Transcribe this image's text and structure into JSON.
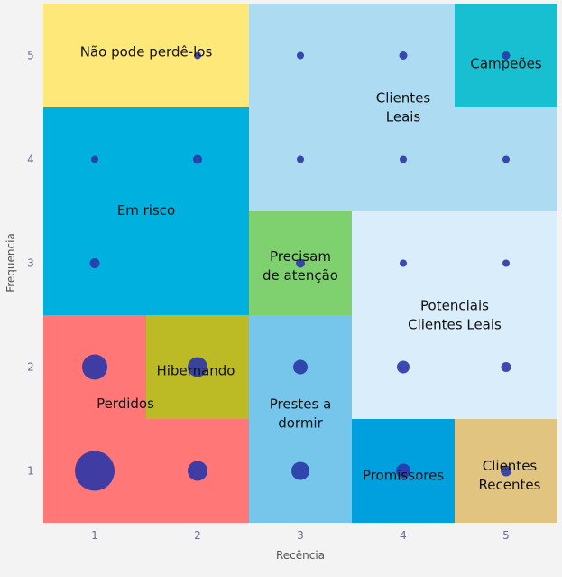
{
  "chart_data": {
    "type": "scatter",
    "subtype": "bubble-over-segment-grid",
    "xlabel": "Recência",
    "ylabel": "Frequencia",
    "xlim": [
      0.5,
      5.5
    ],
    "ylim": [
      0.5,
      5.5
    ],
    "xticks": [
      "1",
      "2",
      "3",
      "4",
      "5"
    ],
    "yticks": [
      "1",
      "2",
      "3",
      "4",
      "5"
    ],
    "grid": false,
    "point_color": "#2a36a8",
    "segments": [
      {
        "name": "Não pode perdê-los",
        "lines": [
          "Não pode perdê-los"
        ],
        "x": [
          0.5,
          2.5
        ],
        "y": [
          4.5,
          5.5
        ],
        "color": "#FFE87A"
      },
      {
        "name": "Clientes Leais",
        "lines": [
          "Clientes",
          "Leais"
        ],
        "x": [
          2.5,
          5.5
        ],
        "y": [
          3.5,
          5.5
        ],
        "color": "#ADDBF2"
      },
      {
        "name": "Campeões",
        "lines": [
          "Campeões"
        ],
        "x": [
          4.5,
          5.5
        ],
        "y": [
          4.5,
          5.5
        ],
        "color": "#18BFD1"
      },
      {
        "name": "Em risco",
        "lines": [
          "Em risco"
        ],
        "x": [
          0.5,
          2.5
        ],
        "y": [
          2.5,
          4.5
        ],
        "color": "#00B1E0"
      },
      {
        "name": "Precisam de atenção",
        "lines": [
          "Precisam",
          "de atenção"
        ],
        "x": [
          2.5,
          3.5
        ],
        "y": [
          2.5,
          3.5
        ],
        "color": "#7FD170"
      },
      {
        "name": "Potenciais Clientes Leais",
        "lines": [
          "Potenciais",
          "Clientes Leais"
        ],
        "x": [
          3.5,
          5.5
        ],
        "y": [
          1.5,
          3.5
        ],
        "color": "#DAEDFA"
      },
      {
        "name": "Perdidos",
        "lines": [
          "Perdidos"
        ],
        "x": [
          0.5,
          2.5
        ],
        "y": [
          0.5,
          2.5
        ],
        "color": "#FF7777"
      },
      {
        "name": "Hibernando",
        "lines": [
          "Hibernando"
        ],
        "x": [
          1.5,
          2.5
        ],
        "y": [
          1.5,
          2.5
        ],
        "color": "#BDBB25"
      },
      {
        "name": "Prestes a dormir",
        "lines": [
          "Prestes a",
          "dormir"
        ],
        "x": [
          2.5,
          3.5
        ],
        "y": [
          0.5,
          2.5
        ],
        "color": "#76C6EB"
      },
      {
        "name": "Promissores",
        "lines": [
          "Promissores"
        ],
        "x": [
          3.5,
          4.5
        ],
        "y": [
          0.5,
          1.5
        ],
        "color": "#009FDE"
      },
      {
        "name": "Clientes Recentes",
        "lines": [
          "Clientes",
          "Recentes"
        ],
        "x": [
          4.5,
          5.5
        ],
        "y": [
          0.5,
          1.5
        ],
        "color": "#E1C47F"
      }
    ],
    "points": [
      {
        "x": 1,
        "y": 1,
        "size": 22
      },
      {
        "x": 2,
        "y": 1,
        "size": 11
      },
      {
        "x": 3,
        "y": 1,
        "size": 10
      },
      {
        "x": 4,
        "y": 1,
        "size": 8
      },
      {
        "x": 5,
        "y": 1,
        "size": 6
      },
      {
        "x": 1,
        "y": 2,
        "size": 14
      },
      {
        "x": 2,
        "y": 2,
        "size": 11
      },
      {
        "x": 3,
        "y": 2,
        "size": 8
      },
      {
        "x": 4,
        "y": 2,
        "size": 7
      },
      {
        "x": 5,
        "y": 2,
        "size": 5.5
      },
      {
        "x": 1,
        "y": 3,
        "size": 5.5
      },
      {
        "x": 3,
        "y": 3,
        "size": 5
      },
      {
        "x": 4,
        "y": 3,
        "size": 4
      },
      {
        "x": 5,
        "y": 3,
        "size": 4
      },
      {
        "x": 1,
        "y": 4,
        "size": 4
      },
      {
        "x": 2,
        "y": 4,
        "size": 5
      },
      {
        "x": 3,
        "y": 4,
        "size": 4
      },
      {
        "x": 4,
        "y": 4,
        "size": 4
      },
      {
        "x": 5,
        "y": 4,
        "size": 4
      },
      {
        "x": 2,
        "y": 5,
        "size": 4
      },
      {
        "x": 3,
        "y": 5,
        "size": 4
      },
      {
        "x": 4,
        "y": 5,
        "size": 4.5
      },
      {
        "x": 5,
        "y": 5,
        "size": 4.5
      }
    ]
  }
}
